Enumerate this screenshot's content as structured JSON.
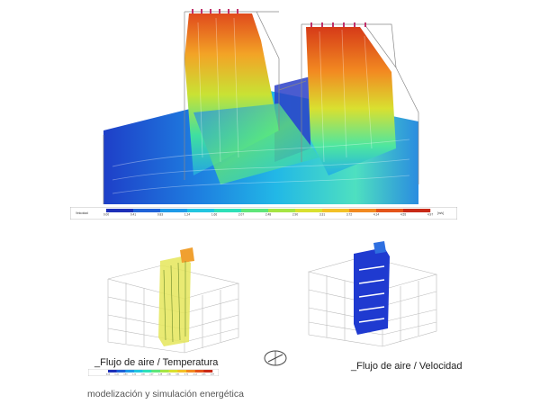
{
  "top_scale": {
    "label": "Velocidad",
    "unit": "[m/s]",
    "ticks": [
      "0.00",
      "0.41",
      "0.83",
      "1.24",
      "1.66",
      "2.07",
      "2.48",
      "2.90",
      "3.31",
      "3.72",
      "4.14",
      "4.55",
      "4.97"
    ]
  },
  "small_scale": {
    "label": "Velocidad",
    "unit": "[m/s]",
    "ticks": [
      "0.00",
      "0.41",
      "0.83",
      "1.24",
      "1.66",
      "2.07",
      "2.48",
      "2.90",
      "3.31",
      "3.72",
      "4.14",
      "4.55",
      "4.97"
    ]
  },
  "captions": {
    "left": "_Flujo de aire / Temperatura",
    "right": "_Flujo de aire / Velocidad",
    "footer": "modelización y simulación energética"
  },
  "colors": {
    "scale": [
      "#1d2fb8",
      "#1f62d8",
      "#1e9ae8",
      "#22c6e0",
      "#2ee0b8",
      "#5fe67a",
      "#a6e544",
      "#d9e030",
      "#f3c127",
      "#f28a21",
      "#e4541b",
      "#c82a17"
    ]
  }
}
